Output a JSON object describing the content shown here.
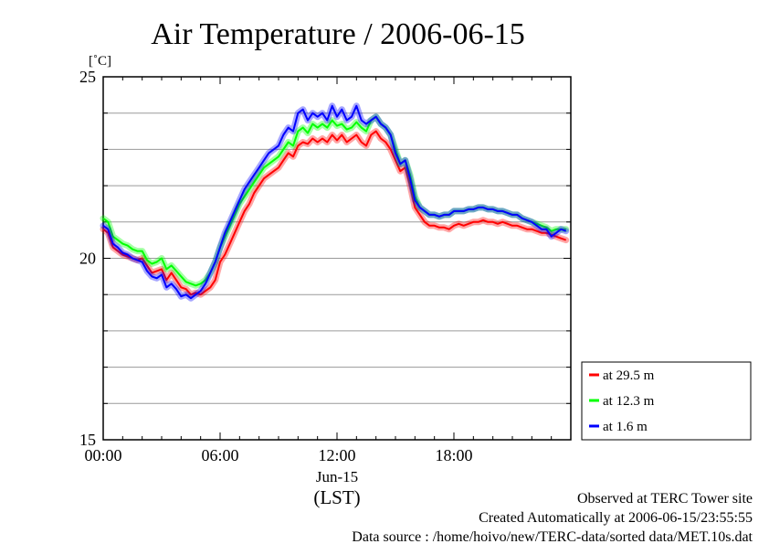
{
  "chart_data": {
    "type": "line",
    "title": "Air Temperature / 2006-06-15",
    "ylabel": "[˚C]",
    "ylim": [
      15,
      25
    ],
    "xlim": [
      0,
      24
    ],
    "y_ticks": [
      {
        "value": 15,
        "label": "15"
      },
      {
        "value": 20,
        "label": "20"
      },
      {
        "value": 25,
        "label": "25"
      }
    ],
    "y_minor_step": 1,
    "x_ticks": [
      {
        "value": 0,
        "label": "00:00"
      },
      {
        "value": 6,
        "label": "06:00"
      },
      {
        "value": 12,
        "label": "12:00"
      },
      {
        "value": 18,
        "label": "18:00"
      }
    ],
    "x_date_label": "Jun-15",
    "x_unit_label": "(LST)",
    "grid": true,
    "legend_position": "right",
    "series": [
      {
        "name": "at 29.5 m",
        "color": "#ff0000",
        "x": [
          0,
          0.25,
          0.5,
          0.75,
          1,
          1.25,
          1.5,
          1.75,
          2,
          2.25,
          2.5,
          2.75,
          3,
          3.25,
          3.5,
          3.75,
          4,
          4.25,
          4.5,
          4.75,
          5,
          5.25,
          5.5,
          5.75,
          6,
          6.25,
          6.5,
          6.75,
          7,
          7.25,
          7.5,
          7.75,
          8,
          8.25,
          8.5,
          8.75,
          9,
          9.25,
          9.5,
          9.75,
          10,
          10.25,
          10.5,
          10.75,
          11,
          11.25,
          11.5,
          11.75,
          12,
          12.25,
          12.5,
          12.75,
          13,
          13.25,
          13.5,
          13.75,
          14,
          14.25,
          14.5,
          14.75,
          15,
          15.25,
          15.5,
          15.75,
          16,
          16.25,
          16.5,
          16.75,
          17,
          17.25,
          17.5,
          17.75,
          18,
          18.25,
          18.5,
          18.75,
          19,
          19.25,
          19.5,
          19.75,
          20,
          20.25,
          20.5,
          20.75,
          21,
          21.25,
          21.5,
          21.75,
          22,
          22.25,
          22.5,
          22.75,
          23,
          23.25,
          23.5,
          23.75
        ],
        "y": [
          20.8,
          20.7,
          20.3,
          20.2,
          20.1,
          20.05,
          20.0,
          19.95,
          20.0,
          19.8,
          19.6,
          19.65,
          19.7,
          19.4,
          19.6,
          19.4,
          19.2,
          19.15,
          19.0,
          19.05,
          19.0,
          19.1,
          19.2,
          19.4,
          19.9,
          20.1,
          20.4,
          20.7,
          21.0,
          21.3,
          21.5,
          21.8,
          22.0,
          22.2,
          22.3,
          22.4,
          22.5,
          22.7,
          22.9,
          22.8,
          23.1,
          23.2,
          23.15,
          23.3,
          23.2,
          23.3,
          23.2,
          23.4,
          23.25,
          23.4,
          23.2,
          23.3,
          23.4,
          23.2,
          23.1,
          23.4,
          23.5,
          23.3,
          23.2,
          23.0,
          22.7,
          22.4,
          22.5,
          22.0,
          21.4,
          21.2,
          21.0,
          20.9,
          20.9,
          20.85,
          20.85,
          20.8,
          20.9,
          20.95,
          20.9,
          20.95,
          21.0,
          21.0,
          21.05,
          21.0,
          21.0,
          20.95,
          21.0,
          20.95,
          20.9,
          20.9,
          20.85,
          20.8,
          20.8,
          20.75,
          20.7,
          20.7,
          20.65,
          20.6,
          20.55,
          20.5
        ]
      },
      {
        "name": "at 12.3 m",
        "color": "#00ff00",
        "x": [
          0,
          0.25,
          0.5,
          0.75,
          1,
          1.25,
          1.5,
          1.75,
          2,
          2.25,
          2.5,
          2.75,
          3,
          3.25,
          3.5,
          3.75,
          4,
          4.25,
          4.5,
          4.75,
          5,
          5.25,
          5.5,
          5.75,
          6,
          6.25,
          6.5,
          6.75,
          7,
          7.25,
          7.5,
          7.75,
          8,
          8.25,
          8.5,
          8.75,
          9,
          9.25,
          9.5,
          9.75,
          10,
          10.25,
          10.5,
          10.75,
          11,
          11.25,
          11.5,
          11.75,
          12,
          12.25,
          12.5,
          12.75,
          13,
          13.25,
          13.5,
          13.75,
          14,
          14.25,
          14.5,
          14.75,
          15,
          15.25,
          15.5,
          15.75,
          16,
          16.25,
          16.5,
          16.75,
          17,
          17.25,
          17.5,
          17.75,
          18,
          18.25,
          18.5,
          18.75,
          19,
          19.25,
          19.5,
          19.75,
          20,
          20.25,
          20.5,
          20.75,
          21,
          21.25,
          21.5,
          21.75,
          22,
          22.25,
          22.5,
          22.75,
          23,
          23.25,
          23.5,
          23.75
        ],
        "y": [
          21.1,
          21.0,
          20.6,
          20.5,
          20.4,
          20.35,
          20.25,
          20.2,
          20.2,
          19.95,
          19.85,
          19.9,
          20.0,
          19.7,
          19.8,
          19.65,
          19.5,
          19.35,
          19.3,
          19.25,
          19.3,
          19.4,
          19.6,
          19.9,
          20.3,
          20.6,
          20.9,
          21.2,
          21.5,
          21.7,
          21.9,
          22.1,
          22.3,
          22.5,
          22.6,
          22.7,
          22.8,
          23.0,
          23.2,
          23.1,
          23.5,
          23.6,
          23.45,
          23.7,
          23.6,
          23.7,
          23.6,
          23.8,
          23.65,
          23.7,
          23.55,
          23.6,
          23.75,
          23.6,
          23.5,
          23.8,
          23.9,
          23.7,
          23.6,
          23.4,
          23.0,
          22.6,
          22.7,
          22.3,
          21.7,
          21.4,
          21.3,
          21.2,
          21.2,
          21.15,
          21.2,
          21.2,
          21.3,
          21.3,
          21.3,
          21.35,
          21.35,
          21.4,
          21.4,
          21.35,
          21.35,
          21.3,
          21.3,
          21.25,
          21.2,
          21.2,
          21.1,
          21.05,
          21.0,
          20.95,
          20.9,
          20.85,
          20.75,
          20.8,
          20.8,
          20.8
        ]
      },
      {
        "name": "at 1.6 m",
        "color": "#0000ff",
        "x": [
          0,
          0.25,
          0.5,
          0.75,
          1,
          1.25,
          1.5,
          1.75,
          2,
          2.25,
          2.5,
          2.75,
          3,
          3.25,
          3.5,
          3.75,
          4,
          4.25,
          4.5,
          4.75,
          5,
          5.25,
          5.5,
          5.75,
          6,
          6.25,
          6.5,
          6.75,
          7,
          7.25,
          7.5,
          7.75,
          8,
          8.25,
          8.5,
          8.75,
          9,
          9.25,
          9.5,
          9.75,
          10,
          10.25,
          10.5,
          10.75,
          11,
          11.25,
          11.5,
          11.75,
          12,
          12.25,
          12.5,
          12.75,
          13,
          13.25,
          13.5,
          13.75,
          14,
          14.25,
          14.5,
          14.75,
          15,
          15.25,
          15.5,
          15.75,
          16,
          16.25,
          16.5,
          16.75,
          17,
          17.25,
          17.5,
          17.75,
          18,
          18.25,
          18.5,
          18.75,
          19,
          19.25,
          19.5,
          19.75,
          20,
          20.25,
          20.5,
          20.75,
          21,
          21.25,
          21.5,
          21.75,
          22,
          22.25,
          22.5,
          22.75,
          23,
          23.25,
          23.5,
          23.75
        ],
        "y": [
          20.9,
          20.8,
          20.4,
          20.3,
          20.15,
          20.1,
          20.0,
          19.95,
          19.9,
          19.65,
          19.5,
          19.45,
          19.55,
          19.2,
          19.3,
          19.15,
          18.95,
          19.0,
          18.9,
          19.0,
          19.1,
          19.3,
          19.6,
          19.9,
          20.3,
          20.7,
          21.0,
          21.3,
          21.6,
          21.9,
          22.1,
          22.3,
          22.5,
          22.7,
          22.9,
          23.0,
          23.1,
          23.4,
          23.6,
          23.5,
          24.0,
          24.1,
          23.8,
          24.0,
          23.9,
          24.0,
          23.8,
          24.2,
          23.9,
          24.1,
          23.8,
          23.9,
          24.2,
          23.8,
          23.7,
          23.8,
          23.9,
          23.7,
          23.6,
          23.4,
          22.9,
          22.6,
          22.7,
          22.2,
          21.6,
          21.4,
          21.3,
          21.2,
          21.2,
          21.15,
          21.2,
          21.2,
          21.3,
          21.3,
          21.3,
          21.35,
          21.35,
          21.4,
          21.4,
          21.35,
          21.35,
          21.3,
          21.3,
          21.25,
          21.2,
          21.2,
          21.1,
          21.05,
          21.0,
          20.9,
          20.8,
          20.8,
          20.6,
          20.7,
          20.8,
          20.75
        ]
      }
    ]
  },
  "footer": {
    "line1": "Observed at TERC Tower site",
    "line2": "Created Automatically at 2006-06-15/23:55:55",
    "line3": "Data source : /home/hoivo/new/TERC-data/sorted  data/MET.10s.dat"
  }
}
